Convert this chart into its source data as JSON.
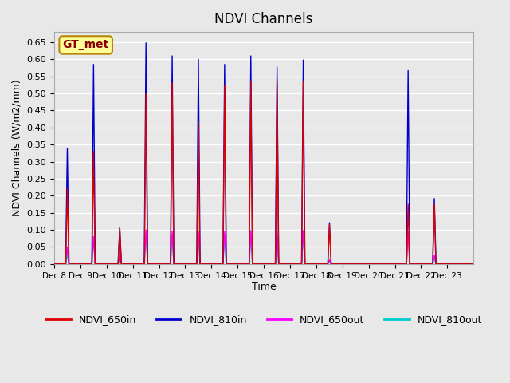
{
  "title": "NDVI Channels",
  "xlabel": "Time",
  "ylabel": "NDVI Channels (W/m2/mm)",
  "ylim": [
    0,
    0.68
  ],
  "yticks": [
    0.0,
    0.05,
    0.1,
    0.15,
    0.2,
    0.25,
    0.3,
    0.35,
    0.4,
    0.45,
    0.5,
    0.55,
    0.6,
    0.65
  ],
  "background_color": "#e8e8e8",
  "plot_bg_color": "#e8e8e8",
  "grid_color": "#ffffff",
  "annotation_text": "GT_met",
  "annotation_box_color": "#ffff99",
  "annotation_border_color": "#b8860b",
  "annotation_text_color": "#8b0000",
  "colors": {
    "NDVI_650in": "#dd0000",
    "NDVI_810in": "#0000cc",
    "NDVI_650out": "#ff00ff",
    "NDVI_810out": "#00cccc"
  },
  "legend_labels": [
    "NDVI_650in",
    "NDVI_810in",
    "NDVI_650out",
    "NDVI_810out"
  ],
  "tick_labels": [
    "Dec 8",
    "Dec 9",
    "Dec 10",
    "Dec 11",
    "Dec 12",
    "Dec 13",
    "Dec 14",
    "Dec 15",
    "Dec 16",
    "Dec 17",
    "Dec 18",
    "Dec 19",
    "Dec 20",
    "Dec 21",
    "Dec 22",
    "Dec 23"
  ],
  "peaks_810in": [
    0.34,
    0.585,
    0.108,
    0.648,
    0.61,
    0.6,
    0.585,
    0.61,
    0.578,
    0.598,
    0.121,
    0.0,
    0.0,
    0.567,
    0.192,
    0.0
  ],
  "peaks_650in": [
    0.22,
    0.33,
    0.105,
    0.5,
    0.53,
    0.415,
    0.525,
    0.535,
    0.535,
    0.535,
    0.115,
    0.0,
    0.0,
    0.175,
    0.175,
    0.0
  ],
  "peaks_650out": [
    0.05,
    0.08,
    0.025,
    0.1,
    0.095,
    0.095,
    0.095,
    0.098,
    0.095,
    0.098,
    0.012,
    0.0,
    0.0,
    0.095,
    0.025,
    0.0
  ],
  "peaks_810out": [
    0.03,
    0.075,
    0.015,
    0.085,
    0.085,
    0.085,
    0.085,
    0.085,
    0.085,
    0.085,
    0.01,
    0.0,
    0.0,
    0.085,
    0.02,
    0.0
  ]
}
